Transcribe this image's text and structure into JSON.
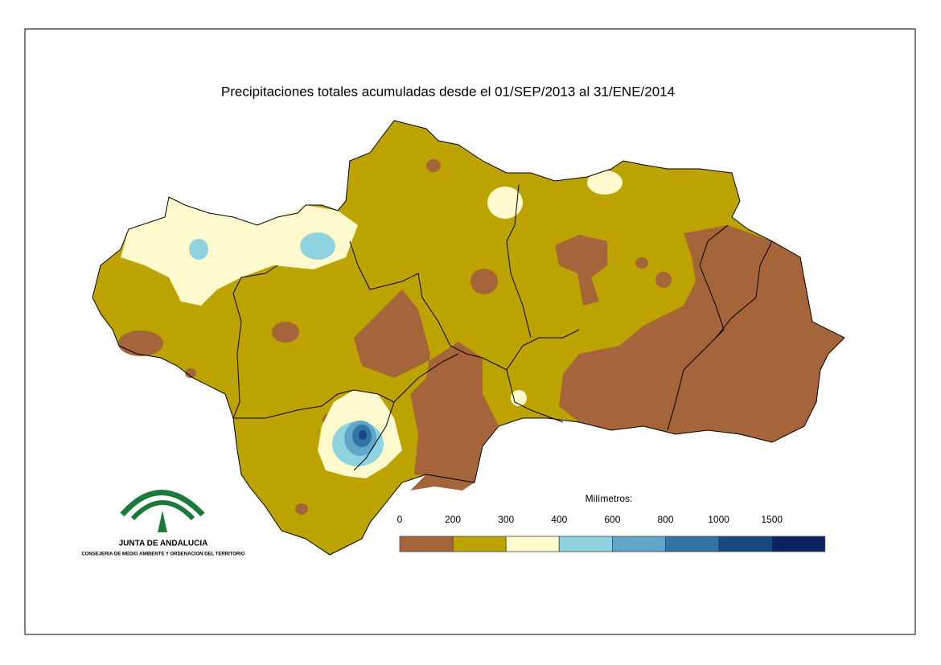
{
  "title": "Precipitaciones totales acumuladas desde el 01/SEP/2013 al 31/ENE/2014",
  "legend": {
    "label": "Milímetros:",
    "bins": [
      0,
      200,
      300,
      400,
      600,
      800,
      1000,
      1500
    ],
    "colors": [
      "#a5643a",
      "#bca300",
      "#fffacd",
      "#8ed3df",
      "#5fa6c9",
      "#3374a6",
      "#17487f",
      "#0b2360"
    ]
  },
  "logo": {
    "name": "JUNTA DE ANDALUCIA",
    "subtitle": "CONSEJERIA DE MEDIO AMBIENTE Y ORDENACION DEL TERRITORIO"
  }
}
